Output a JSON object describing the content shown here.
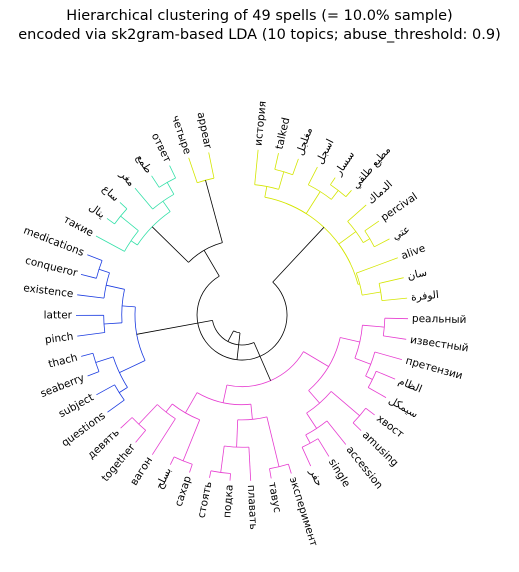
{
  "figure": {
    "title_line1": "Hierarchical clustering of 49 spells (= 10.0% sample)",
    "title_line2": "encoded via sk2gram-based LDA (10 topics; abuse_threshold: 0.9)"
  },
  "chart_data": {
    "type": "dendrogram",
    "layout": "circular",
    "leaf_count": 49,
    "clusters": [
      {
        "color": "#d4e600",
        "leaves": [
          "история",
          "talked",
          "مغلجل",
          "اسجل",
          "سسار",
          "مطيع طلقي",
          "الدماك",
          "percival",
          "عتي",
          "alive",
          "سان",
          "الوفرة"
        ]
      },
      {
        "color": "#e63cd0",
        "leaves": [
          "реальный",
          "известный",
          "претензии",
          "الظام",
          "سيمكل",
          "хвост",
          "amusing",
          "accession",
          "single",
          "حفر",
          "эксперимент",
          "тавус",
          "плавать",
          "подка",
          "стоять",
          "сахар",
          "بسلح",
          "вагон",
          "together",
          "девять"
        ]
      },
      {
        "color": "#1a3be0",
        "leaves": [
          "questions",
          "subject",
          "seaberry",
          "thach",
          "pinch",
          "latter",
          "existence",
          "conqueror",
          "medications"
        ]
      },
      {
        "color": "#33e0a8",
        "leaves": [
          "такие",
          "ينال",
          "ساع",
          "مغر",
          "طمع",
          "ответ"
        ]
      },
      {
        "color": "#d4e600",
        "leaves": [
          "четыре",
          "appear"
        ]
      }
    ]
  }
}
